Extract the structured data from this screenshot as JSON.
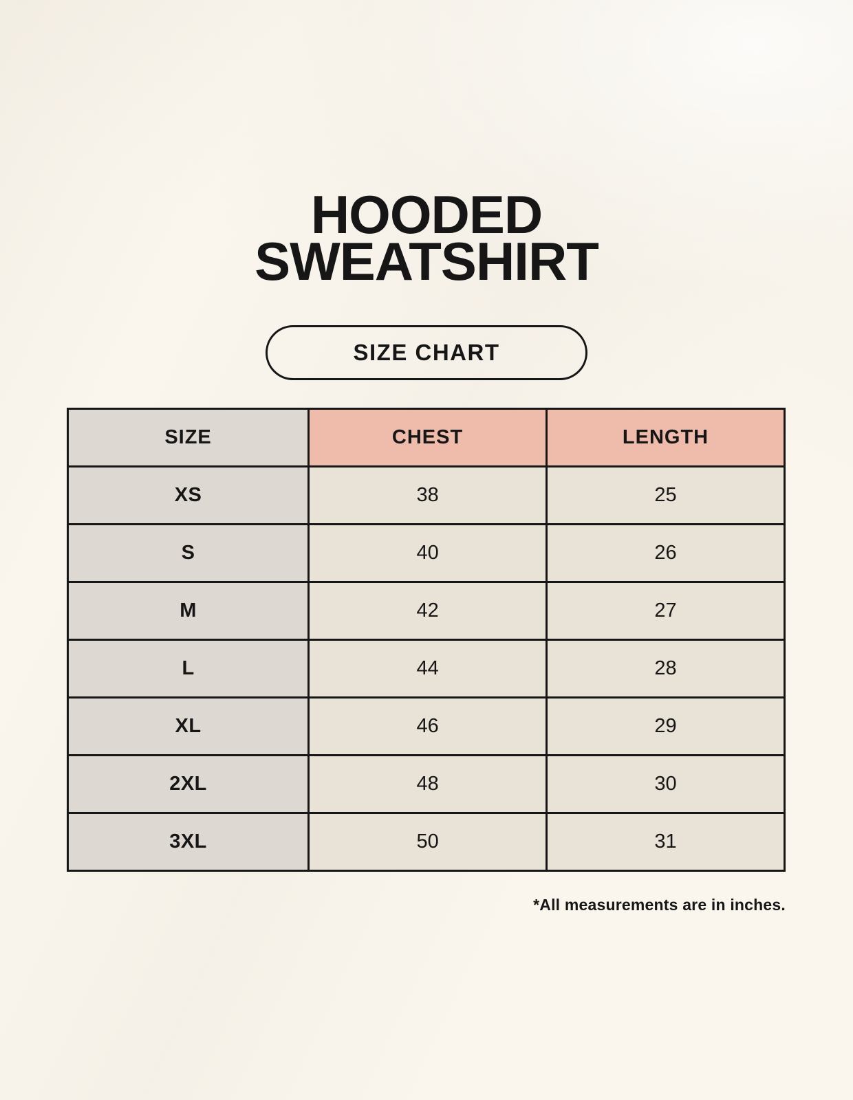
{
  "page": {
    "title_line1": "HOODED",
    "title_line2": "SWEATSHIRT",
    "badge_label": "SIZE CHART",
    "footnote": "*All measurements are in inches."
  },
  "table": {
    "headers": [
      "SIZE",
      "CHEST",
      "LENGTH"
    ],
    "rows": [
      {
        "size": "XS",
        "chest": "38",
        "length": "25"
      },
      {
        "size": "S",
        "chest": "40",
        "length": "26"
      },
      {
        "size": "M",
        "chest": "42",
        "length": "27"
      },
      {
        "size": "L",
        "chest": "44",
        "length": "28"
      },
      {
        "size": "XL",
        "chest": "46",
        "length": "29"
      },
      {
        "size": "2XL",
        "chest": "48",
        "length": "30"
      },
      {
        "size": "3XL",
        "chest": "50",
        "length": "31"
      }
    ]
  },
  "colors": {
    "background": "#faf6ee",
    "header_accent": "#efbcab",
    "size_column": "#ded8d2",
    "cell": "#e9e2d6",
    "border": "#161616",
    "text": "#161616"
  },
  "chart_data": {
    "type": "table",
    "title": "HOODED SWEATSHIRT SIZE CHART",
    "columns": [
      "SIZE",
      "CHEST",
      "LENGTH"
    ],
    "rows": [
      [
        "XS",
        38,
        25
      ],
      [
        "S",
        40,
        26
      ],
      [
        "M",
        42,
        27
      ],
      [
        "L",
        44,
        28
      ],
      [
        "XL",
        46,
        29
      ],
      [
        "2XL",
        48,
        30
      ],
      [
        "3XL",
        50,
        31
      ]
    ],
    "units": "inches"
  }
}
